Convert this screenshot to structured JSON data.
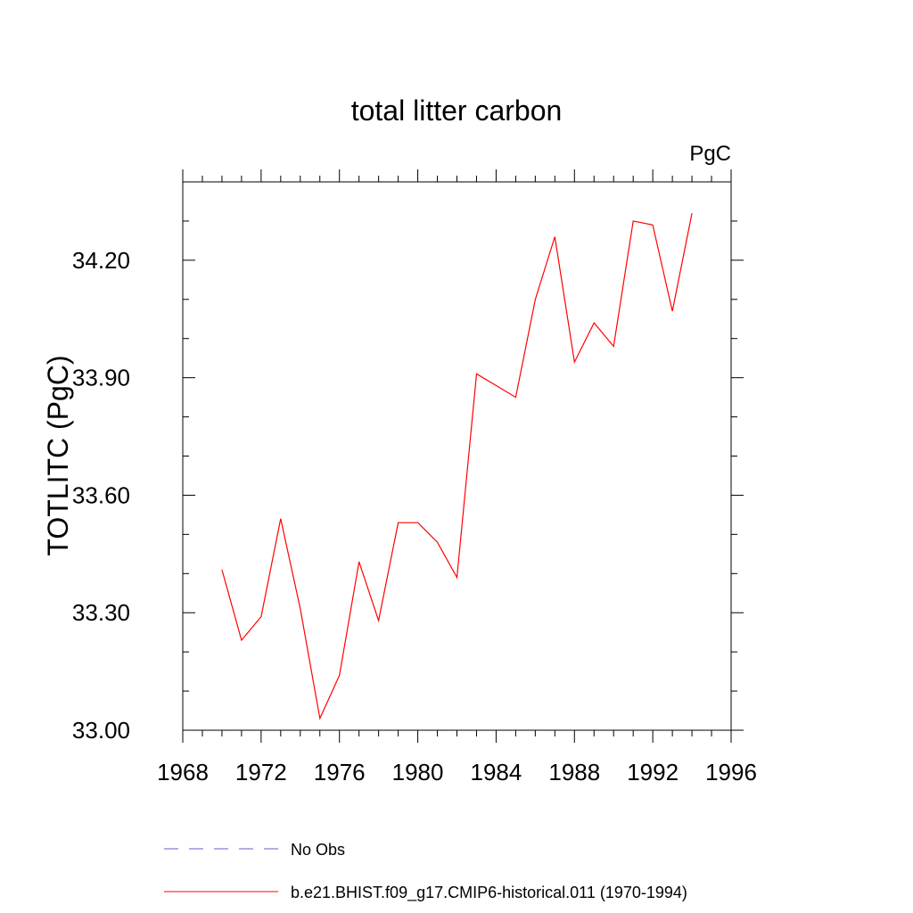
{
  "chart_data": {
    "type": "line",
    "title": "total litter carbon",
    "units_label": "PgC",
    "ylabel": "TOTLITC  (PgC)",
    "xlabel": "",
    "xlim": [
      1968,
      1996
    ],
    "ylim": [
      33.0,
      34.4
    ],
    "x_ticks": [
      1968,
      1972,
      1976,
      1980,
      1984,
      1988,
      1992,
      1996
    ],
    "x_tick_labels": [
      "1968",
      "1972",
      "1976",
      "1980",
      "1984",
      "1988",
      "1992",
      "1996"
    ],
    "y_ticks": [
      33.0,
      33.3,
      33.6,
      33.9,
      34.2
    ],
    "y_tick_labels": [
      "33.00",
      "33.30",
      "33.60",
      "33.90",
      "34.20"
    ],
    "grid": false,
    "legend_position": "bottom",
    "series": [
      {
        "name": "b.e21.BHIST.f09_g17.CMIP6-historical.011 (1970-1994)",
        "color": "#ff0000",
        "style": "solid",
        "x": [
          1970,
          1971,
          1972,
          1973,
          1974,
          1975,
          1976,
          1977,
          1978,
          1979,
          1980,
          1981,
          1982,
          1983,
          1984,
          1985,
          1986,
          1987,
          1988,
          1989,
          1990,
          1991,
          1992,
          1993,
          1994
        ],
        "y": [
          33.41,
          33.23,
          33.29,
          33.54,
          33.31,
          33.03,
          33.14,
          33.43,
          33.28,
          33.53,
          33.53,
          33.48,
          33.39,
          33.91,
          33.88,
          33.85,
          34.1,
          34.26,
          33.94,
          34.04,
          33.98,
          34.3,
          34.29,
          34.07,
          34.32
        ]
      }
    ],
    "legend": [
      {
        "label": "No Obs",
        "color": "#6a5acd",
        "style": "dashed"
      },
      {
        "label": "b.e21.BHIST.f09_g17.CMIP6-historical.011 (1970-1994)",
        "color": "#ff0000",
        "style": "solid"
      }
    ]
  }
}
